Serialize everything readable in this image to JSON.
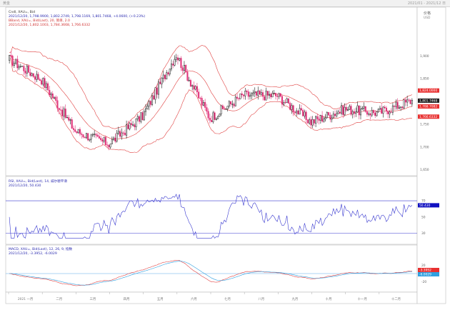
{
  "window": {
    "title": "黄金",
    "date_range": "2021/01 - 2021/12 日"
  },
  "colors": {
    "candle_up": "#1a1a1a",
    "candle_down": "#e0357a",
    "bollinger": "#e04040",
    "rsi": "#3a3ad0",
    "macd_line": "#e04040",
    "signal_line": "#30a0e0",
    "hline": "#5aa8e8",
    "price_tag_red": "#e83030",
    "price_tag_dark": "#202020",
    "price_tag_blue": "#1010c0"
  },
  "panes": {
    "price": {
      "title": "Cndl, XAU=, Bid",
      "ohlc_line": "2021/12/20, 1,798.9900, 1,802.2749, 1,798.1169, 1,801.7468, +4.0600, (+0.23%)",
      "boll_title": "BBand, XAU=, Bid(Last), 20, 简单, 2.0",
      "boll_line": "2021/12/20, 1,802.1003, 1,784.3668, 1,766.6332",
      "axis_unit": "价格",
      "axis_currency": "USD",
      "tags": [
        "1,824.0000",
        "1,801.7468",
        "1,788.7082",
        "1,766.6332"
      ]
    },
    "rsi": {
      "title": "RSI, XAU=, Bid(Last), 14, 威尔德平滑",
      "value_line": "2021/12/20, 50.430",
      "tag": "50.430"
    },
    "macd": {
      "title": "MACD, XAU=, Bid(Last), 12, 26, 9, 指数",
      "value_line": "2021/12/20, -3.3952, -6.0029",
      "tags": [
        "-3.3952",
        "-6.0029"
      ]
    }
  },
  "chart_data": {
    "type": "candlestick",
    "instrument": "XAU=",
    "period": "2021",
    "price_ticks": [
      1900,
      1850,
      1800,
      1750,
      1700,
      1650
    ],
    "rsi_ticks": [
      70,
      50,
      30
    ],
    "macd_ticks": [
      20,
      0,
      -20
    ],
    "months": [
      "2021 一月",
      "二月",
      "三月",
      "四月",
      "五月",
      "六月",
      "七月",
      "八月",
      "九月",
      "十月",
      "十一月",
      "十二月"
    ],
    "month_close_approx": [
      1848,
      1735,
      1707,
      1768,
      1903,
      1763,
      1814,
      1813,
      1755,
      1783,
      1775,
      1802
    ],
    "candles_per_month": 21,
    "price_ylim": [
      1640,
      1960
    ]
  }
}
